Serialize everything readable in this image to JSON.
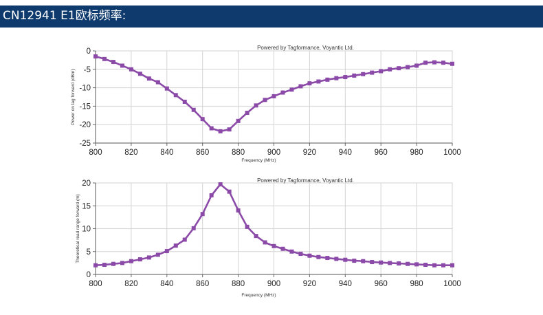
{
  "header": {
    "title": "CN12941 E1欧标频率:",
    "background": "#0e3a6e"
  },
  "chart_data": [
    {
      "type": "line",
      "annotation": "Powered by Tagformance, Voyantic Ltd.",
      "xlabel": "Frequency (MHz)",
      "ylabel": "Power on tag forward (dBm)",
      "xlim": [
        800,
        1000
      ],
      "ylim": [
        -25,
        0
      ],
      "xticks": [
        800,
        820,
        840,
        860,
        880,
        900,
        920,
        940,
        960,
        980,
        1000
      ],
      "yticks": [
        0,
        -5,
        -10,
        -15,
        -20,
        -25
      ],
      "grid": true,
      "color": "#8b4aa8",
      "x": [
        800,
        805,
        810,
        815,
        820,
        825,
        830,
        835,
        840,
        845,
        850,
        855,
        860,
        865,
        870,
        875,
        880,
        885,
        890,
        895,
        900,
        905,
        910,
        915,
        920,
        925,
        930,
        935,
        940,
        945,
        950,
        955,
        960,
        965,
        970,
        975,
        980,
        985,
        990,
        995,
        1000
      ],
      "y": [
        -1.5,
        -2.2,
        -3,
        -4,
        -5,
        -6.2,
        -7.5,
        -8.5,
        -10.2,
        -12,
        -13.8,
        -16,
        -18.5,
        -21,
        -21.8,
        -21.3,
        -19,
        -16.8,
        -14.8,
        -13.3,
        -12.3,
        -11.3,
        -10.5,
        -9.6,
        -8.8,
        -8.3,
        -7.8,
        -7.4,
        -7.1,
        -6.7,
        -6.3,
        -5.9,
        -5.5,
        -5,
        -4.7,
        -4.4,
        -4,
        -3.2,
        -3.1,
        -3.2,
        -3.5
      ]
    },
    {
      "type": "line",
      "annotation": "Powered by Tagformance, Voyantic Ltd.",
      "xlabel": "Frequency (MHz)",
      "ylabel": "Theoretical read range forward (m)",
      "xlim": [
        800,
        1000
      ],
      "ylim": [
        0,
        20
      ],
      "xticks": [
        800,
        820,
        840,
        860,
        880,
        900,
        920,
        940,
        960,
        980,
        1000
      ],
      "yticks": [
        20,
        15,
        10,
        5,
        0
      ],
      "grid": true,
      "color": "#8b4aa8",
      "x": [
        800,
        805,
        810,
        815,
        820,
        825,
        830,
        835,
        840,
        845,
        850,
        855,
        860,
        865,
        870,
        875,
        880,
        885,
        890,
        895,
        900,
        905,
        910,
        915,
        920,
        925,
        930,
        935,
        940,
        945,
        950,
        955,
        960,
        965,
        970,
        975,
        980,
        985,
        990,
        995,
        1000
      ],
      "y": [
        2,
        2.1,
        2.3,
        2.5,
        2.9,
        3.3,
        3.7,
        4.3,
        5.1,
        6.3,
        7.6,
        10.1,
        13.2,
        17.3,
        19.7,
        18.1,
        14,
        10.4,
        8.4,
        7,
        6.2,
        5.6,
        5,
        4.5,
        4.1,
        3.8,
        3.6,
        3.4,
        3.2,
        3,
        2.9,
        2.7,
        2.6,
        2.5,
        2.4,
        2.3,
        2.2,
        2.1,
        2,
        2,
        2
      ]
    }
  ]
}
